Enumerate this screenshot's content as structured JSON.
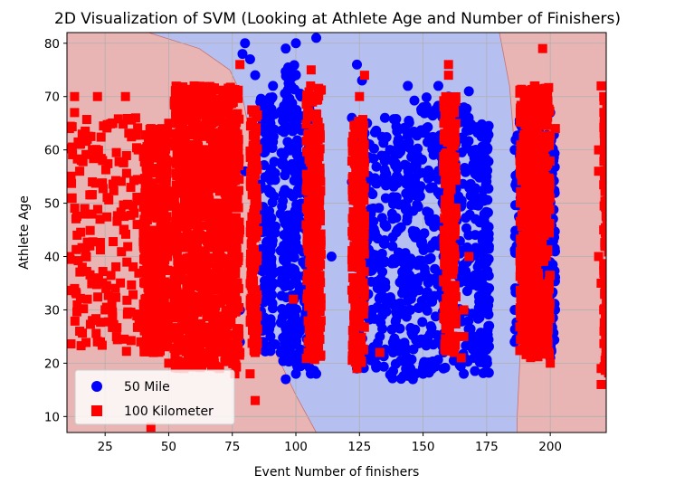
{
  "chart_data": {
    "type": "scatter",
    "title": "2D Visualization of SVM (Looking at Athlete Age and Number of Finishers)",
    "xlabel": "Event Number of finishers",
    "ylabel": "Athlete Age",
    "xlim": [
      10,
      222
    ],
    "ylim": [
      7,
      82
    ],
    "xticks": [
      25,
      50,
      75,
      100,
      125,
      150,
      175,
      200
    ],
    "yticks": [
      10,
      20,
      30,
      40,
      50,
      60,
      70,
      80
    ],
    "grid": true,
    "legend_position": "bottom-left",
    "colors": {
      "region_100km": "#e8b4b4",
      "region_50mile": "#b5bff0",
      "boundary": "#c87070",
      "series_50mile": "#0000ff",
      "series_100km": "#ff0000",
      "grid": "#b0b0b0"
    },
    "decision_regions": {
      "description": "SVM decision surface: 100 Kilometer (red) region on the left and right edges, 50 Mile (blue) region in the middle",
      "boundary_left": [
        [
          42,
          82
        ],
        [
          62,
          79
        ],
        [
          74,
          75
        ],
        [
          79,
          70
        ],
        [
          83,
          60
        ],
        [
          85,
          50
        ],
        [
          86,
          40
        ],
        [
          88,
          30
        ],
        [
          92,
          22
        ],
        [
          100,
          14
        ],
        [
          108,
          7
        ]
      ],
      "boundary_right": [
        [
          180,
          82
        ],
        [
          184,
          72
        ],
        [
          186,
          60
        ],
        [
          188,
          50
        ],
        [
          189,
          40
        ],
        [
          189,
          30
        ],
        [
          188,
          20
        ],
        [
          187,
          10
        ],
        [
          187,
          7
        ]
      ]
    },
    "series": [
      {
        "name": "50 Mile",
        "marker": "circle",
        "color": "#0000ff",
        "points": [
          [
            80,
            80
          ],
          [
            79,
            78
          ],
          [
            82,
            77
          ],
          [
            84,
            74
          ],
          [
            96,
            79
          ],
          [
            100,
            80
          ],
          [
            108,
            81
          ],
          [
            100,
            74
          ],
          [
            102,
            70
          ],
          [
            98,
            67
          ],
          [
            86,
            69
          ],
          [
            91,
            72
          ],
          [
            124,
            76
          ],
          [
            126,
            73
          ],
          [
            122,
            66
          ],
          [
            128,
            65
          ],
          [
            144,
            72
          ],
          [
            150,
            68
          ],
          [
            156,
            72
          ],
          [
            168,
            71
          ],
          [
            160,
            70
          ],
          [
            166,
            67
          ],
          [
            172,
            64
          ],
          [
            200,
            67
          ],
          [
            196,
            70
          ],
          [
            186,
            60
          ],
          [
            190,
            52
          ],
          [
            186,
            30
          ],
          [
            200,
            21
          ],
          [
            146,
            17
          ],
          [
            150,
            18
          ],
          [
            158,
            19
          ],
          [
            166,
            18
          ],
          [
            170,
            21
          ],
          [
            96,
            17
          ],
          [
            100,
            18
          ],
          [
            108,
            18
          ],
          [
            100,
            20
          ],
          [
            124,
            19
          ],
          [
            130,
            22
          ],
          [
            90,
            25
          ],
          [
            94,
            22
          ],
          [
            104,
            28
          ],
          [
            78,
            24
          ],
          [
            64,
            26
          ],
          [
            76,
            44
          ],
          [
            80,
            56
          ],
          [
            78,
            30
          ],
          [
            94,
            48
          ],
          [
            104,
            46
          ],
          [
            108,
            35
          ],
          [
            114,
            40
          ],
          [
            122,
            54
          ],
          [
            128,
            48
          ],
          [
            137,
            60
          ],
          [
            140,
            45
          ],
          [
            145,
            30
          ],
          [
            153,
            55
          ],
          [
            158,
            40
          ],
          [
            165,
            50
          ],
          [
            170,
            35
          ],
          [
            175,
            55
          ],
          [
            176,
            27
          ],
          [
            175,
            62
          ],
          [
            135,
            66
          ],
          [
            133,
            25
          ],
          [
            170,
            25
          ],
          [
            186,
            24
          ],
          [
            188,
            65
          ],
          [
            196,
            25
          ]
        ]
      },
      {
        "name": "100 Kilometer",
        "marker": "square",
        "color": "#ff0000",
        "points": [
          [
            13,
            70
          ],
          [
            22,
            70
          ],
          [
            13,
            67
          ],
          [
            11,
            64
          ],
          [
            18,
            62
          ],
          [
            24,
            58
          ],
          [
            15,
            56
          ],
          [
            20,
            54
          ],
          [
            12,
            51
          ],
          [
            17,
            49
          ],
          [
            23,
            47
          ],
          [
            14,
            44
          ],
          [
            19,
            42
          ],
          [
            11,
            40
          ],
          [
            16,
            38
          ],
          [
            22,
            36
          ],
          [
            13,
            34
          ],
          [
            18,
            32
          ],
          [
            25,
            30
          ],
          [
            20,
            28
          ],
          [
            15,
            26
          ],
          [
            22,
            24
          ],
          [
            33,
            70
          ],
          [
            37,
            66
          ],
          [
            43,
            64
          ],
          [
            38,
            60
          ],
          [
            48,
            62
          ],
          [
            55,
            67
          ],
          [
            60,
            72
          ],
          [
            66,
            70
          ],
          [
            72,
            68
          ],
          [
            78,
            76
          ],
          [
            50,
            65
          ],
          [
            58,
            70
          ],
          [
            42,
            30
          ],
          [
            45,
            26
          ],
          [
            39,
            24
          ],
          [
            44,
            22
          ],
          [
            50,
            20
          ],
          [
            56,
            19
          ],
          [
            64,
            20
          ],
          [
            70,
            19
          ],
          [
            76,
            18
          ],
          [
            82,
            18
          ],
          [
            84,
            13
          ],
          [
            43,
            8
          ],
          [
            78,
            22
          ],
          [
            84,
            22
          ],
          [
            99,
            32
          ],
          [
            106,
            75
          ],
          [
            108,
            62
          ],
          [
            127,
            74
          ],
          [
            125,
            70
          ],
          [
            124,
            19
          ],
          [
            133,
            22
          ],
          [
            160,
            76
          ],
          [
            160,
            74
          ],
          [
            168,
            40
          ],
          [
            166,
            30
          ],
          [
            166,
            25
          ],
          [
            165,
            21
          ],
          [
            197,
            79
          ],
          [
            194,
            72
          ],
          [
            202,
            64
          ],
          [
            198,
            55
          ],
          [
            193,
            25
          ],
          [
            200,
            20
          ],
          [
            220,
            72
          ],
          [
            222,
            65
          ],
          [
            219,
            56
          ],
          [
            221,
            45
          ],
          [
            220,
            35
          ],
          [
            222,
            25
          ],
          [
            220,
            19
          ],
          [
            220,
            16
          ],
          [
            221,
            70
          ],
          [
            219,
            60
          ],
          [
            222,
            50
          ],
          [
            219,
            40
          ],
          [
            221,
            30
          ]
        ],
        "dense_bands": [
          [
            40,
            50,
            22,
            64
          ],
          [
            52,
            78,
            19,
            72
          ],
          [
            82,
            85,
            22,
            68
          ],
          [
            104,
            110,
            20,
            72
          ],
          [
            122,
            127,
            20,
            66
          ],
          [
            158,
            163,
            22,
            70
          ],
          [
            188,
            200,
            21,
            72
          ],
          [
            221,
            223,
            18,
            72
          ]
        ]
      }
    ],
    "legend": [
      {
        "label": "50 Mile",
        "marker": "circle",
        "color": "#0000ff"
      },
      {
        "label": "100 Kilometer",
        "marker": "square",
        "color": "#ff0000"
      }
    ]
  }
}
